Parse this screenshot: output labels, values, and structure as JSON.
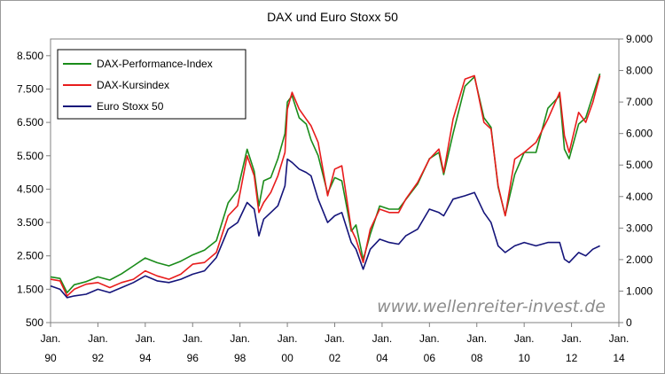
{
  "chart_data": {
    "type": "line",
    "title": "DAX und Euro Stoxx 50",
    "watermark": "www.wellenreiter-invest.de",
    "x_ticks": [
      {
        "year": 1990,
        "month": "Jan.",
        "yy": "90"
      },
      {
        "year": 1992,
        "month": "Jan.",
        "yy": "92"
      },
      {
        "year": 1994,
        "month": "Jan.",
        "yy": "94"
      },
      {
        "year": 1996,
        "month": "Jan.",
        "yy": "96"
      },
      {
        "year": 1998,
        "month": "Jan.",
        "yy": "98"
      },
      {
        "year": 2000,
        "month": "Jan.",
        "yy": "00"
      },
      {
        "year": 2002,
        "month": "Jan.",
        "yy": "02"
      },
      {
        "year": 2004,
        "month": "Jan.",
        "yy": "04"
      },
      {
        "year": 2006,
        "month": "Jan.",
        "yy": "06"
      },
      {
        "year": 2008,
        "month": "Jan.",
        "yy": "08"
      },
      {
        "year": 2010,
        "month": "Jan.",
        "yy": "10"
      },
      {
        "year": 2012,
        "month": "Jan.",
        "yy": "12"
      },
      {
        "year": 2014,
        "month": "Jan.",
        "yy": "14"
      }
    ],
    "xlim": [
      1990,
      2014
    ],
    "y_left": {
      "ylim": [
        500,
        9000
      ],
      "ticks": [
        500,
        1500,
        2500,
        3500,
        4500,
        5500,
        6500,
        7500,
        8500
      ],
      "tick_labels": [
        "500",
        "1.500",
        "2.500",
        "3.500",
        "4.500",
        "5.500",
        "6.500",
        "7.500",
        "8.500"
      ]
    },
    "y_right": {
      "ylim": [
        0,
        9000
      ],
      "ticks": [
        0,
        1000,
        2000,
        3000,
        4000,
        5000,
        6000,
        7000,
        8000,
        9000
      ],
      "tick_labels": [
        "0",
        "1.000",
        "2.000",
        "3.000",
        "4.000",
        "5.000",
        "6.000",
        "7.000",
        "8.000",
        "9.000"
      ]
    },
    "grid": false,
    "legend_position": "top-left",
    "series": [
      {
        "name": "DAX-Performance-Index",
        "color": "#1a8c1a",
        "axis": "right",
        "x": [
          1990.0,
          1990.4,
          1990.7,
          1991.0,
          1991.5,
          1992.0,
          1992.5,
          1993.0,
          1993.5,
          1994.0,
          1994.5,
          1995.0,
          1995.5,
          1996.0,
          1996.5,
          1997.0,
          1997.5,
          1997.9,
          1998.3,
          1998.6,
          1998.8,
          1999.0,
          1999.3,
          1999.6,
          1999.9,
          2000.0,
          2000.2,
          2000.5,
          2000.8,
          2001.0,
          2001.3,
          2001.7,
          2002.0,
          2002.3,
          2002.7,
          2002.9,
          2003.2,
          2003.5,
          2003.9,
          2004.3,
          2004.7,
          2005.0,
          2005.5,
          2006.0,
          2006.4,
          2006.6,
          2007.0,
          2007.5,
          2007.9,
          2008.3,
          2008.6,
          2008.9,
          2009.2,
          2009.6,
          2010.0,
          2010.5,
          2011.0,
          2011.5,
          2011.7,
          2011.9,
          2012.3,
          2012.6,
          2012.9,
          2013.2
        ],
        "values": [
          1450,
          1400,
          950,
          1200,
          1300,
          1450,
          1350,
          1550,
          1800,
          2050,
          1900,
          1800,
          1950,
          2150,
          2300,
          2600,
          3800,
          4200,
          5500,
          4800,
          3700,
          4500,
          4600,
          5200,
          6000,
          7000,
          7200,
          6500,
          6300,
          5800,
          5300,
          4100,
          4600,
          4500,
          2900,
          3100,
          2000,
          2800,
          3700,
          3600,
          3600,
          3900,
          4400,
          5200,
          5400,
          4700,
          6000,
          7500,
          7800,
          6500,
          6200,
          4300,
          3400,
          4700,
          5400,
          5400,
          6800,
          7200,
          5500,
          5200,
          6300,
          6500,
          7200,
          7900
        ]
      },
      {
        "name": "DAX-Kursindex",
        "color": "#e81c1c",
        "axis": "left",
        "x": [
          1990.0,
          1990.4,
          1990.7,
          1991.0,
          1991.5,
          1992.0,
          1992.5,
          1993.0,
          1993.5,
          1994.0,
          1994.5,
          1995.0,
          1995.5,
          1996.0,
          1996.5,
          1997.0,
          1997.5,
          1997.9,
          1998.3,
          1998.6,
          1998.8,
          1999.0,
          1999.3,
          1999.6,
          1999.9,
          2000.0,
          2000.2,
          2000.5,
          2000.8,
          2001.0,
          2001.3,
          2001.7,
          2002.0,
          2002.3,
          2002.7,
          2002.9,
          2003.2,
          2003.5,
          2003.9,
          2004.3,
          2004.7,
          2005.0,
          2005.5,
          2006.0,
          2006.4,
          2006.6,
          2007.0,
          2007.5,
          2007.9,
          2008.3,
          2008.6,
          2008.9,
          2009.2,
          2009.6,
          2010.0,
          2010.5,
          2011.0,
          2011.5,
          2011.7,
          2011.9,
          2012.3,
          2012.6,
          2012.9,
          2013.2
        ],
        "values": [
          1800,
          1750,
          1300,
          1500,
          1650,
          1700,
          1550,
          1700,
          1800,
          2050,
          1900,
          1800,
          1950,
          2250,
          2300,
          2600,
          3700,
          4000,
          5500,
          4900,
          3800,
          4100,
          4400,
          4900,
          5600,
          6900,
          7400,
          6900,
          6600,
          6400,
          5900,
          4300,
          5100,
          5200,
          3300,
          3000,
          2300,
          3300,
          3900,
          3800,
          3800,
          4200,
          4700,
          5400,
          5700,
          5000,
          6600,
          7800,
          7900,
          6500,
          6300,
          4600,
          3700,
          5400,
          5600,
          5900,
          6600,
          7400,
          6100,
          5600,
          6800,
          6500,
          7100,
          7900
        ]
      },
      {
        "name": "Euro Stoxx 50",
        "color": "#14147a",
        "axis": "left",
        "x": [
          1990.0,
          1990.4,
          1990.7,
          1991.0,
          1991.5,
          1992.0,
          1992.5,
          1993.0,
          1993.5,
          1994.0,
          1994.5,
          1995.0,
          1995.5,
          1996.0,
          1996.5,
          1997.0,
          1997.5,
          1997.9,
          1998.3,
          1998.6,
          1998.8,
          1999.0,
          1999.3,
          1999.6,
          1999.9,
          2000.0,
          2000.2,
          2000.5,
          2000.8,
          2001.0,
          2001.3,
          2001.7,
          2002.0,
          2002.3,
          2002.7,
          2002.9,
          2003.2,
          2003.5,
          2003.9,
          2004.3,
          2004.7,
          2005.0,
          2005.5,
          2006.0,
          2006.4,
          2006.6,
          2007.0,
          2007.5,
          2007.9,
          2008.3,
          2008.6,
          2008.9,
          2009.2,
          2009.6,
          2010.0,
          2010.5,
          2011.0,
          2011.5,
          2011.7,
          2011.9,
          2012.3,
          2012.6,
          2012.9,
          2013.2
        ],
        "values": [
          1600,
          1500,
          1250,
          1300,
          1350,
          1500,
          1400,
          1550,
          1700,
          1900,
          1750,
          1700,
          1800,
          1950,
          2050,
          2450,
          3300,
          3500,
          4100,
          3900,
          3100,
          3600,
          3800,
          4000,
          4600,
          5400,
          5300,
          5100,
          5000,
          4900,
          4200,
          3500,
          3700,
          3800,
          2900,
          2700,
          2100,
          2700,
          3000,
          2900,
          2850,
          3100,
          3300,
          3900,
          3800,
          3700,
          4200,
          4300,
          4400,
          3800,
          3500,
          2800,
          2600,
          2800,
          2900,
          2800,
          2900,
          2900,
          2400,
          2300,
          2600,
          2500,
          2700,
          2800
        ]
      }
    ]
  }
}
